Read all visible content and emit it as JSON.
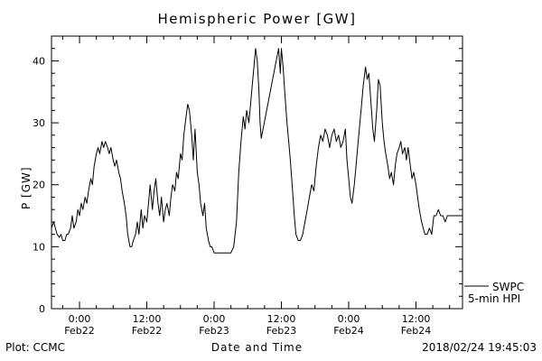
{
  "footer": {
    "credit": "Plot: CCMC",
    "timestamp": "2018/02/24 19:45:03"
  },
  "legend": {
    "source": "SWPC",
    "series": "5-min HPI"
  },
  "chart_data": {
    "type": "line",
    "title": "Hemispheric Power [GW]",
    "xlabel": "Date and Time",
    "ylabel": "P [GW]",
    "ylim": [
      0,
      44
    ],
    "xlim_hours": [
      -5,
      68.3
    ],
    "x_unit": "hours relative to Feb22 0:00",
    "yticks": [
      0,
      10,
      20,
      30,
      40
    ],
    "y_minor_step": 2,
    "x_minor_step_hours": 3,
    "grid": false,
    "line_color": "#000000",
    "background": "#ffffff",
    "xticks": [
      {
        "t": 0,
        "time": "0:00",
        "date": "Feb22"
      },
      {
        "t": 12,
        "time": "12:00",
        "date": "Feb22"
      },
      {
        "t": 24,
        "time": "0:00",
        "date": "Feb23"
      },
      {
        "t": 36,
        "time": "12:00",
        "date": "Feb23"
      },
      {
        "t": 48,
        "time": "0:00",
        "date": "Feb24"
      },
      {
        "t": 60,
        "time": "12:00",
        "date": "Feb24"
      }
    ],
    "series": [
      {
        "name": "SWPC 5-min HPI",
        "points": [
          [
            -5,
            13
          ],
          [
            -4.6,
            14
          ],
          [
            -4.3,
            13
          ],
          [
            -4,
            12
          ],
          [
            -3.6,
            11.5
          ],
          [
            -3.3,
            12
          ],
          [
            -3,
            11
          ],
          [
            -2.6,
            11
          ],
          [
            -2.3,
            12
          ],
          [
            -2,
            12
          ],
          [
            -1.6,
            13
          ],
          [
            -1.3,
            15
          ],
          [
            -1,
            13
          ],
          [
            -0.6,
            14
          ],
          [
            -0.3,
            16
          ],
          [
            0,
            15
          ],
          [
            0.3,
            17
          ],
          [
            0.6,
            16
          ],
          [
            1,
            18
          ],
          [
            1.3,
            17
          ],
          [
            1.6,
            19
          ],
          [
            2,
            21
          ],
          [
            2.3,
            20
          ],
          [
            2.6,
            23
          ],
          [
            3,
            25
          ],
          [
            3.3,
            26
          ],
          [
            3.6,
            25
          ],
          [
            4,
            27
          ],
          [
            4.3,
            26
          ],
          [
            4.6,
            27
          ],
          [
            5,
            26
          ],
          [
            5.3,
            25
          ],
          [
            5.6,
            26
          ],
          [
            6,
            24
          ],
          [
            6.3,
            23
          ],
          [
            6.6,
            24
          ],
          [
            7,
            22
          ],
          [
            7.3,
            21
          ],
          [
            7.6,
            19
          ],
          [
            8,
            17
          ],
          [
            8.3,
            15
          ],
          [
            8.6,
            12
          ],
          [
            9,
            10
          ],
          [
            9.3,
            10
          ],
          [
            9.6,
            11
          ],
          [
            10,
            12
          ],
          [
            10.3,
            14
          ],
          [
            10.6,
            12
          ],
          [
            11,
            16
          ],
          [
            11.3,
            13
          ],
          [
            11.6,
            15
          ],
          [
            12,
            14
          ],
          [
            12.3,
            17
          ],
          [
            12.6,
            20
          ],
          [
            13,
            16
          ],
          [
            13.3,
            19
          ],
          [
            13.6,
            21
          ],
          [
            14,
            17
          ],
          [
            14.3,
            15
          ],
          [
            14.6,
            18
          ],
          [
            15,
            14
          ],
          [
            15.3,
            16
          ],
          [
            15.6,
            17
          ],
          [
            16,
            15
          ],
          [
            16.3,
            18
          ],
          [
            16.6,
            20
          ],
          [
            17,
            19
          ],
          [
            17.3,
            22
          ],
          [
            17.6,
            21
          ],
          [
            18,
            25
          ],
          [
            18.3,
            24
          ],
          [
            18.6,
            28
          ],
          [
            19,
            31
          ],
          [
            19.3,
            33
          ],
          [
            19.6,
            32
          ],
          [
            20,
            28
          ],
          [
            20.3,
            24
          ],
          [
            20.6,
            29
          ],
          [
            21,
            22
          ],
          [
            21.3,
            20
          ],
          [
            21.6,
            17
          ],
          [
            22,
            15
          ],
          [
            22.3,
            17
          ],
          [
            22.6,
            13
          ],
          [
            23,
            11
          ],
          [
            23.3,
            10
          ],
          [
            23.6,
            10
          ],
          [
            24,
            9
          ],
          [
            24.5,
            9
          ],
          [
            25,
            9
          ],
          [
            25.5,
            9
          ],
          [
            26,
            9
          ],
          [
            26.5,
            9
          ],
          [
            27,
            9
          ],
          [
            27.5,
            10
          ],
          [
            28,
            14
          ],
          [
            28.4,
            22
          ],
          [
            28.8,
            27
          ],
          [
            29.2,
            31
          ],
          [
            29.5,
            29
          ],
          [
            29.8,
            32
          ],
          [
            30.2,
            30
          ],
          [
            30.5,
            33
          ],
          [
            30.8,
            36
          ],
          [
            31.1,
            39
          ],
          [
            31.4,
            42
          ],
          [
            31.7,
            40
          ],
          [
            32,
            35
          ],
          [
            32.2,
            30
          ],
          [
            32.4,
            27.5
          ],
          [
            35.5,
            42
          ],
          [
            35.8,
            38
          ],
          [
            36,
            42
          ],
          [
            36.3,
            39
          ],
          [
            36.6,
            35
          ],
          [
            37,
            30
          ],
          [
            37.3,
            27
          ],
          [
            37.6,
            24
          ],
          [
            38,
            19
          ],
          [
            38.3,
            15
          ],
          [
            38.6,
            12
          ],
          [
            39,
            11
          ],
          [
            39.4,
            11
          ],
          [
            39.8,
            12
          ],
          [
            40.2,
            14
          ],
          [
            40.6,
            16
          ],
          [
            41,
            18
          ],
          [
            41.4,
            20
          ],
          [
            41.8,
            19
          ],
          [
            42.2,
            23
          ],
          [
            42.6,
            26
          ],
          [
            43,
            28
          ],
          [
            43.4,
            27
          ],
          [
            43.8,
            29
          ],
          [
            44.2,
            28
          ],
          [
            44.6,
            26
          ],
          [
            45,
            28
          ],
          [
            45.4,
            29
          ],
          [
            45.8,
            27
          ],
          [
            46.2,
            28
          ],
          [
            46.6,
            26
          ],
          [
            47,
            27
          ],
          [
            47.4,
            29
          ],
          [
            47.7,
            24
          ],
          [
            48,
            21
          ],
          [
            48.3,
            18
          ],
          [
            48.6,
            17
          ],
          [
            49,
            20
          ],
          [
            49.3,
            23
          ],
          [
            49.6,
            26
          ],
          [
            50,
            30
          ],
          [
            50.3,
            33
          ],
          [
            50.6,
            36
          ],
          [
            51,
            39
          ],
          [
            51.3,
            37
          ],
          [
            51.6,
            38
          ],
          [
            52,
            33
          ],
          [
            52.3,
            29
          ],
          [
            52.6,
            27
          ],
          [
            53,
            32
          ],
          [
            53.3,
            37
          ],
          [
            53.6,
            36
          ],
          [
            54,
            30
          ],
          [
            54.3,
            27
          ],
          [
            54.6,
            25
          ],
          [
            55,
            23
          ],
          [
            55.3,
            21
          ],
          [
            55.6,
            22
          ],
          [
            56,
            20
          ],
          [
            56.3,
            23
          ],
          [
            56.6,
            25
          ],
          [
            57,
            26
          ],
          [
            57.3,
            27
          ],
          [
            57.6,
            25
          ],
          [
            58,
            26
          ],
          [
            58.3,
            24
          ],
          [
            58.6,
            26
          ],
          [
            59,
            23
          ],
          [
            59.3,
            21
          ],
          [
            59.6,
            22
          ],
          [
            60,
            20
          ],
          [
            60.3,
            18
          ],
          [
            60.6,
            16
          ],
          [
            61,
            14
          ],
          [
            61.3,
            13
          ],
          [
            61.6,
            12
          ],
          [
            62,
            12
          ],
          [
            62.4,
            13
          ],
          [
            62.8,
            12
          ],
          [
            63.2,
            15
          ],
          [
            63.6,
            15
          ],
          [
            64,
            16
          ],
          [
            64.4,
            15
          ],
          [
            64.8,
            15
          ],
          [
            65.2,
            14
          ],
          [
            65.6,
            15
          ],
          [
            66,
            15
          ],
          [
            66.4,
            15
          ],
          [
            66.8,
            15
          ],
          [
            67.2,
            15
          ],
          [
            67.6,
            15
          ],
          [
            68,
            15
          ],
          [
            68.3,
            15
          ]
        ]
      }
    ]
  }
}
